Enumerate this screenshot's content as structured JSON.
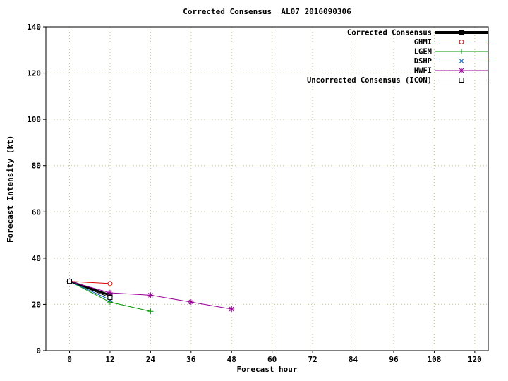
{
  "chart_data": {
    "type": "line",
    "title": "Corrected Consensus  AL07 2016090306",
    "xlabel": "Forecast hour",
    "ylabel": "Forecast Intensity (kt)",
    "xlim": [
      -7,
      124
    ],
    "ylim": [
      0,
      140
    ],
    "xticks": [
      0,
      12,
      24,
      36,
      48,
      60,
      72,
      84,
      96,
      108,
      120
    ],
    "yticks": [
      0,
      20,
      40,
      60,
      80,
      100,
      120,
      140
    ],
    "grid": true,
    "grid_color": "#c8c89a",
    "axis_color": "#000000",
    "legend_position": "top-right",
    "series": [
      {
        "name": "Corrected Consensus",
        "color": "#000000",
        "marker": "square-filled",
        "line_width": 3,
        "x": [
          0,
          12
        ],
        "y": [
          30,
          24
        ]
      },
      {
        "name": "GHMI",
        "color": "#dd0000",
        "marker": "circle-open",
        "line_width": 1,
        "x": [
          0,
          12
        ],
        "y": [
          30,
          29
        ]
      },
      {
        "name": "LGEM",
        "color": "#009900",
        "marker": "plus",
        "line_width": 1,
        "x": [
          0,
          12,
          24
        ],
        "y": [
          30,
          21,
          17
        ]
      },
      {
        "name": "DSHP",
        "color": "#0060c0",
        "marker": "x",
        "line_width": 1,
        "x": [
          0,
          12
        ],
        "y": [
          30,
          22
        ]
      },
      {
        "name": "HWFI",
        "color": "#990099",
        "marker": "asterisk",
        "line_width": 1,
        "x": [
          0,
          12,
          24,
          36,
          48
        ],
        "y": [
          30,
          25,
          24,
          21,
          18
        ]
      },
      {
        "name": "Uncorrected Consensus (ICON)",
        "color": "#000000",
        "marker": "square-open",
        "line_width": 1,
        "x": [
          0,
          12
        ],
        "y": [
          30,
          23
        ]
      }
    ]
  }
}
